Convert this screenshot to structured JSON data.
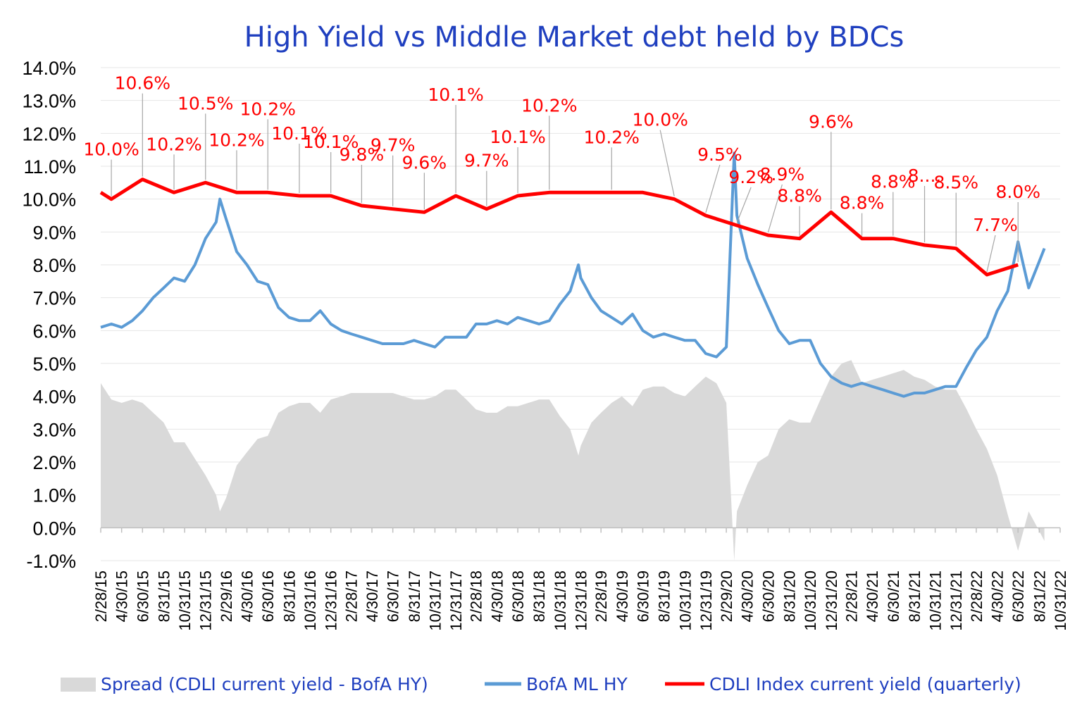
{
  "chart_data": {
    "type": "line",
    "title": "High Yield  vs  Middle Market debt held by BDCs",
    "xlabel": "",
    "ylabel": "",
    "ylim": [
      -1.0,
      14.0
    ],
    "y_ticks": [
      "14.0%",
      "13.0%",
      "12.0%",
      "11.0%",
      "10.0%",
      "9.0%",
      "8.0%",
      "7.0%",
      "6.0%",
      "5.0%",
      "4.0%",
      "3.0%",
      "2.0%",
      "1.0%",
      "0.0%",
      "-1.0%"
    ],
    "x_tick_labels": [
      "2/28/15",
      "4/30/15",
      "6/30/15",
      "8/31/15",
      "10/31/15",
      "12/31/15",
      "2/29/16",
      "4/30/16",
      "6/30/16",
      "8/31/16",
      "10/31/16",
      "12/31/16",
      "2/28/17",
      "4/30/17",
      "6/30/17",
      "8/31/17",
      "10/31/17",
      "12/31/17",
      "2/28/18",
      "4/30/18",
      "6/30/18",
      "8/31/18",
      "10/31/18",
      "12/31/18",
      "2/28/19",
      "4/30/19",
      "6/30/19",
      "8/31/19",
      "10/31/19",
      "12/31/19",
      "2/29/20",
      "4/30/20",
      "6/30/20",
      "8/31/20",
      "10/31/20",
      "12/31/20",
      "2/28/21",
      "4/30/21",
      "6/30/21",
      "8/31/21",
      "10/31/21",
      "12/31/21",
      "2/28/22",
      "4/30/22",
      "6/30/22",
      "8/31/22",
      "10/31/22"
    ],
    "grid": true,
    "legend_position": "bottom",
    "colors": {
      "spread": "#d9d9d9",
      "hy": "#5b9bd5",
      "cdli": "#ff0000",
      "title": "#1f3fbf",
      "labels": "#ff0000"
    },
    "legend": [
      {
        "key": "spread",
        "label": "Spread (CDLI current yield - BofA HY)"
      },
      {
        "key": "hy",
        "label": "BofA ML HY"
      },
      {
        "key": "cdli",
        "label": "CDLI Index current yield (quarterly)"
      }
    ],
    "cdli_series": {
      "name": "CDLI Index current yield (quarterly)",
      "x": [
        "2/28/15",
        "3/31/15",
        "6/30/15",
        "9/30/15",
        "12/31/15",
        "3/31/16",
        "6/30/16",
        "9/30/16",
        "12/31/16",
        "3/31/17",
        "6/30/17",
        "9/30/17",
        "12/31/17",
        "3/31/18",
        "6/30/18",
        "9/30/18",
        "12/31/18",
        "3/31/19",
        "6/30/19",
        "9/30/19",
        "12/31/19",
        "3/31/20",
        "6/30/20",
        "9/30/20",
        "12/31/20",
        "3/31/21",
        "6/30/21",
        "9/30/21",
        "12/31/21",
        "3/31/22",
        "6/30/22"
      ],
      "values": [
        10.2,
        10.0,
        10.6,
        10.2,
        10.5,
        10.2,
        10.2,
        10.1,
        10.1,
        9.8,
        9.7,
        9.6,
        10.1,
        9.7,
        10.1,
        10.2,
        10.2,
        10.2,
        10.2,
        10.0,
        9.5,
        9.2,
        8.9,
        8.8,
        9.6,
        8.8,
        8.8,
        8.6,
        8.5,
        7.7,
        8.0
      ]
    },
    "cdli_labels": [
      {
        "x": "3/31/15",
        "value": 10.0,
        "text": "10.0%"
      },
      {
        "x": "6/30/15",
        "value": 10.6,
        "text": "10.6%"
      },
      {
        "x": "9/30/15",
        "value": 10.2,
        "text": "10.2%"
      },
      {
        "x": "12/31/15",
        "value": 10.5,
        "text": "10.5%"
      },
      {
        "x": "3/31/16",
        "value": 10.2,
        "text": "10.2%"
      },
      {
        "x": "6/30/16",
        "value": 10.2,
        "text": "10.2%"
      },
      {
        "x": "9/30/16",
        "value": 10.1,
        "text": "10.1%"
      },
      {
        "x": "12/31/16",
        "value": 10.1,
        "text": "10.1%"
      },
      {
        "x": "3/31/17",
        "value": 9.8,
        "text": "9.8%"
      },
      {
        "x": "6/30/17",
        "value": 9.7,
        "text": "9.7%"
      },
      {
        "x": "9/30/17",
        "value": 9.6,
        "text": "9.6%"
      },
      {
        "x": "12/31/17",
        "value": 10.1,
        "text": "10.1%"
      },
      {
        "x": "3/31/18",
        "value": 9.7,
        "text": "9.7%"
      },
      {
        "x": "6/30/18",
        "value": 10.1,
        "text": "10.1%"
      },
      {
        "x": "9/30/18",
        "value": 10.2,
        "text": "10.2%"
      },
      {
        "x": "3/31/19",
        "value": 10.2,
        "text": "10.2%"
      },
      {
        "x": "9/30/19",
        "value": 10.0,
        "text": "10.0%"
      },
      {
        "x": "12/31/19",
        "value": 9.5,
        "text": "9.5%"
      },
      {
        "x": "3/31/20",
        "value": 9.2,
        "text": "9.2%"
      },
      {
        "x": "6/30/20",
        "value": 8.9,
        "text": "8.9%"
      },
      {
        "x": "9/30/20",
        "value": 8.8,
        "text": "8.8%"
      },
      {
        "x": "12/31/20",
        "value": 9.6,
        "text": "9.6%"
      },
      {
        "x": "3/31/21",
        "value": 8.8,
        "text": "8.8%"
      },
      {
        "x": "6/30/21",
        "value": 8.8,
        "text": "8.8%"
      },
      {
        "x": "9/30/21",
        "value": 8.6,
        "text": "8...."
      },
      {
        "x": "12/31/21",
        "value": 8.5,
        "text": "8.5%"
      },
      {
        "x": "3/31/22",
        "value": 7.7,
        "text": "7.7%"
      },
      {
        "x": "6/30/22",
        "value": 8.0,
        "text": "8.0%"
      }
    ],
    "hy_series": {
      "name": "BofA ML HY",
      "x": [
        "2/28/15",
        "3/31/15",
        "4/30/15",
        "5/31/15",
        "6/30/15",
        "7/31/15",
        "8/31/15",
        "9/30/15",
        "10/31/15",
        "11/30/15",
        "12/31/15",
        "1/31/16",
        "2/11/16",
        "2/29/16",
        "3/31/16",
        "4/30/16",
        "5/31/16",
        "6/30/16",
        "7/31/16",
        "8/31/16",
        "9/30/16",
        "10/31/16",
        "11/30/16",
        "12/31/16",
        "1/31/17",
        "2/28/17",
        "3/31/17",
        "4/30/17",
        "5/31/17",
        "6/30/17",
        "7/31/17",
        "8/31/17",
        "9/30/17",
        "10/31/17",
        "11/30/17",
        "12/31/17",
        "1/31/18",
        "2/28/18",
        "3/31/18",
        "4/30/18",
        "5/31/18",
        "6/30/18",
        "7/31/18",
        "8/31/18",
        "9/30/18",
        "10/31/18",
        "11/30/18",
        "12/24/18",
        "12/31/18",
        "1/31/19",
        "2/28/19",
        "3/31/19",
        "4/30/19",
        "5/31/19",
        "6/30/19",
        "7/31/19",
        "8/31/19",
        "9/30/19",
        "10/31/19",
        "11/30/19",
        "12/31/19",
        "1/31/20",
        "2/29/20",
        "3/23/20",
        "3/31/20",
        "4/30/20",
        "5/31/20",
        "6/30/20",
        "7/31/20",
        "8/31/20",
        "9/30/20",
        "10/31/20",
        "11/30/20",
        "12/31/20",
        "1/31/21",
        "2/28/21",
        "3/31/21",
        "4/30/21",
        "5/31/21",
        "6/30/21",
        "7/31/21",
        "8/31/21",
        "9/30/21",
        "10/31/21",
        "11/30/21",
        "12/31/21",
        "1/31/22",
        "2/28/22",
        "3/31/22",
        "4/30/22",
        "5/31/22",
        "6/30/22",
        "7/31/22",
        "8/31/22",
        "9/15/22"
      ],
      "values": [
        6.1,
        6.2,
        6.1,
        6.3,
        6.6,
        7.0,
        7.3,
        7.6,
        7.5,
        8.0,
        8.8,
        9.3,
        10.0,
        9.4,
        8.4,
        8.0,
        7.5,
        7.4,
        6.7,
        6.4,
        6.3,
        6.3,
        6.6,
        6.2,
        6.0,
        5.9,
        5.8,
        5.7,
        5.6,
        5.6,
        5.6,
        5.7,
        5.6,
        5.5,
        5.8,
        5.8,
        5.8,
        6.2,
        6.2,
        6.3,
        6.2,
        6.4,
        6.3,
        6.2,
        6.3,
        6.8,
        7.2,
        8.0,
        7.6,
        7.0,
        6.6,
        6.4,
        6.2,
        6.5,
        6.0,
        5.8,
        5.9,
        5.8,
        5.7,
        5.7,
        5.3,
        5.2,
        5.5,
        11.4,
        9.5,
        8.2,
        7.4,
        6.7,
        6.0,
        5.6,
        5.7,
        5.7,
        5.0,
        4.6,
        4.4,
        4.3,
        4.4,
        4.3,
        4.2,
        4.1,
        4.0,
        4.1,
        4.1,
        4.2,
        4.3,
        4.3,
        4.9,
        5.4,
        5.8,
        6.6,
        7.2,
        8.7,
        7.3,
        8.1,
        8.5
      ]
    },
    "spread_series": {
      "name": "Spread (CDLI current yield - BofA HY)",
      "x": [
        "2/28/15",
        "3/31/15",
        "4/30/15",
        "5/31/15",
        "6/30/15",
        "7/31/15",
        "8/31/15",
        "9/30/15",
        "10/31/15",
        "11/30/15",
        "12/31/15",
        "1/31/16",
        "2/11/16",
        "2/29/16",
        "3/31/16",
        "4/30/16",
        "5/31/16",
        "6/30/16",
        "7/31/16",
        "8/31/16",
        "9/30/16",
        "10/31/16",
        "11/30/16",
        "12/31/16",
        "1/31/17",
        "2/28/17",
        "3/31/17",
        "4/30/17",
        "5/31/17",
        "6/30/17",
        "7/31/17",
        "8/31/17",
        "9/30/17",
        "10/31/17",
        "11/30/17",
        "12/31/17",
        "1/31/18",
        "2/28/18",
        "3/31/18",
        "4/30/18",
        "5/31/18",
        "6/30/18",
        "7/31/18",
        "8/31/18",
        "9/30/18",
        "10/31/18",
        "11/30/18",
        "12/24/18",
        "12/31/18",
        "1/31/19",
        "2/28/19",
        "3/31/19",
        "4/30/19",
        "5/31/19",
        "6/30/19",
        "7/31/19",
        "8/31/19",
        "9/30/19",
        "10/31/19",
        "11/30/19",
        "12/31/19",
        "1/31/20",
        "2/29/20",
        "3/23/20",
        "3/31/20",
        "4/30/20",
        "5/31/20",
        "6/30/20",
        "7/31/20",
        "8/31/20",
        "9/30/20",
        "10/31/20",
        "11/30/20",
        "12/31/20",
        "1/31/21",
        "2/28/21",
        "3/31/21",
        "4/30/21",
        "5/31/21",
        "6/30/21",
        "7/31/21",
        "8/31/21",
        "9/30/21",
        "10/31/21",
        "11/30/21",
        "12/31/21",
        "1/31/22",
        "2/28/22",
        "3/31/22",
        "4/30/22",
        "5/31/22",
        "6/30/22",
        "7/31/22",
        "8/31/22",
        "9/15/22"
      ],
      "values": [
        4.4,
        3.9,
        3.8,
        3.9,
        3.8,
        3.5,
        3.2,
        2.6,
        2.6,
        2.1,
        1.6,
        1.0,
        0.5,
        0.9,
        1.9,
        2.3,
        2.7,
        2.8,
        3.5,
        3.7,
        3.8,
        3.8,
        3.5,
        3.9,
        4.0,
        4.1,
        4.1,
        4.1,
        4.1,
        4.1,
        4.0,
        3.9,
        3.9,
        4.0,
        4.2,
        4.2,
        3.9,
        3.6,
        3.5,
        3.5,
        3.7,
        3.7,
        3.8,
        3.9,
        3.9,
        3.4,
        3.0,
        2.2,
        2.5,
        3.2,
        3.5,
        3.8,
        4.0,
        3.7,
        4.2,
        4.3,
        4.3,
        4.1,
        4.0,
        4.3,
        4.6,
        4.4,
        3.8,
        -1.0,
        0.5,
        1.3,
        2.0,
        2.2,
        3.0,
        3.3,
        3.2,
        3.2,
        3.9,
        4.6,
        5.0,
        5.1,
        4.4,
        4.5,
        4.6,
        4.7,
        4.8,
        4.6,
        4.5,
        4.3,
        4.2,
        4.2,
        3.6,
        3.0,
        2.4,
        1.6,
        0.4,
        -0.7,
        0.5,
        -0.1,
        -0.4
      ]
    }
  }
}
